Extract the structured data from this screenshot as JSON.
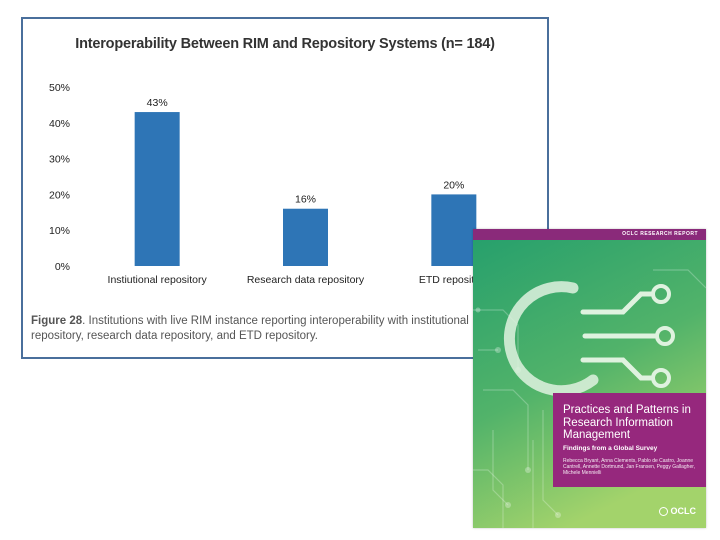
{
  "chart_data": {
    "type": "bar",
    "title": "Interoperability Between RIM and Repository Systems (n= 184)",
    "categories": [
      "Instiutional repository",
      "Research data repository",
      "ETD repository"
    ],
    "values": [
      43,
      16,
      20
    ],
    "value_labels": [
      "43%",
      "16%",
      "20%"
    ],
    "ylim": [
      0,
      50
    ],
    "yticks": [
      0,
      10,
      20,
      30,
      40,
      50
    ],
    "ytick_labels": [
      "0%",
      "10%",
      "20%",
      "30%",
      "40%",
      "50%"
    ],
    "xlabel": "",
    "ylabel": "",
    "bar_color": "#2e75b6",
    "grid": false
  },
  "caption": {
    "figure_label": "Figure 28",
    "text": ". Institutions with live RIM instance reporting interoperability with institutional repository, research data repository, and ETD repository."
  },
  "cover": {
    "kicker": "OCLC RESEARCH REPORT",
    "title": "Practices and Patterns in Research Information Management",
    "subtitle": "Findings from a Global Survey",
    "authors": "Rebecca Bryant, Anna Clements, Pablo de Castro, Joanne Cantrell, Annette Dortmund, Jan Fransen, Peggy Gallagher, Michele Mennielli",
    "logo_text": "OCLC",
    "colors": {
      "band": "#8a2a7a",
      "title_box": "#96287d",
      "green_top": "#2ea36a",
      "green_bottom": "#9bd06a"
    }
  }
}
